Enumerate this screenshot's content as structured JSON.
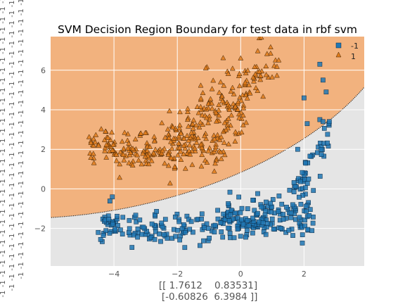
{
  "chart_data": {
    "type": "scatter",
    "title": "SVM Decision Region Boundary for test data in rbf svm",
    "xlabel_lines": [
      "[[ 1.7612    0.83531]",
      " [-0.60826  6.3984 ]]"
    ],
    "ylabel": "",
    "xlim": [
      -6.0,
      3.9
    ],
    "ylim": [
      -3.9,
      7.7
    ],
    "x_ticks": [
      -4,
      -2,
      0,
      2
    ],
    "y_ticks": [
      -2,
      0,
      2,
      4,
      6
    ],
    "grid": true,
    "legend_position": "top-right",
    "left_edge_repeated_label": "-1",
    "region_colors": {
      "class_1": "#f2b27e",
      "class_-1": "#e5e5e5"
    },
    "decision_boundary": {
      "shape": "ellipse",
      "center": [
        -4.2,
        6.8
      ],
      "semi_axis_a": 10.0,
      "semi_axis_b": 7.3,
      "rotation_deg": 35
    },
    "series": [
      {
        "name": "-1",
        "marker": "square",
        "color": "#1f77b4",
        "clusters": [
          {
            "x_range": [
              -4.5,
              2.0
            ],
            "y_center": -1.9,
            "y_spread": 0.42,
            "count": 200,
            "seed": 11
          },
          {
            "x_range": [
              -0.5,
              2.3
            ],
            "y_center": -1.1,
            "y_spread": 0.45,
            "count": 90,
            "seed": 23
          },
          {
            "x_range": [
              1.6,
              2.8
            ],
            "y_center": 1.3,
            "y_spread": 2.1,
            "count": 45,
            "seed": 37
          }
        ],
        "extra_points": [
          [
            2.5,
            6.3
          ],
          [
            2.6,
            5.5
          ],
          [
            2.7,
            4.9
          ],
          [
            2.0,
            4.6
          ],
          [
            2.5,
            3.5
          ],
          [
            1.8,
            2.0
          ],
          [
            2.6,
            3.4
          ],
          [
            2.8,
            3.4
          ],
          [
            2.1,
            3.3
          ]
        ]
      },
      {
        "name": "1",
        "marker": "triangle",
        "color": "#e07b1a",
        "clusters": [
          {
            "x_range": [
              -4.8,
              -0.5
            ],
            "y_center": 2.0,
            "y_spread": 0.45,
            "count": 180,
            "seed": 51
          },
          {
            "x_range": [
              -2.3,
              0.2
            ],
            "y_center": 3.2,
            "y_spread": 0.75,
            "count": 120,
            "seed": 67
          },
          {
            "x_range": [
              -1.3,
              1.3
            ],
            "y_center": 5.2,
            "y_spread": 0.7,
            "count": 80,
            "seed": 83
          }
        ],
        "extra_points": [
          [
            0.0,
            6.6
          ],
          [
            1.1,
            6.5
          ],
          [
            1.2,
            6.5
          ],
          [
            -1.1,
            6.1
          ],
          [
            0.8,
            6.2
          ]
        ]
      }
    ]
  }
}
